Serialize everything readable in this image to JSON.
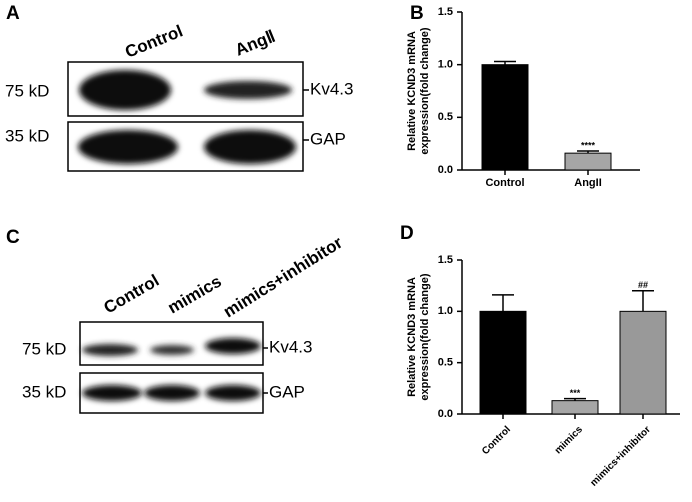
{
  "blots": [
    {
      "panel": "A",
      "lanes": [
        "Control",
        "AngⅡ"
      ],
      "rows": [
        {
          "size": "75 kD",
          "protein": "Kv4.3"
        },
        {
          "size": "35 kD",
          "protein": "GAP"
        }
      ]
    },
    {
      "panel": "C",
      "lanes": [
        "Control",
        "mimics",
        "mimics+inhibitor"
      ],
      "rows": [
        {
          "size": "75 kD",
          "protein": "Kv4.3"
        },
        {
          "size": "35 kD",
          "protein": "GAP"
        }
      ]
    }
  ],
  "chart_data": [
    {
      "type": "bar",
      "panel": "B",
      "ylabel": [
        "Relative KCND3 mRNA",
        "expression(fold change)"
      ],
      "categories": [
        "Control",
        "AngII"
      ],
      "values": [
        1.0,
        0.16
      ],
      "errors": [
        0.03,
        0.02
      ],
      "significance": [
        null,
        "****"
      ],
      "colors": [
        "#000000",
        "#a6a6a6"
      ],
      "ylim": [
        0,
        1.5
      ],
      "yticks": [
        {
          "value": 0,
          "label": "0.0"
        },
        0.5,
        {
          "value": 1,
          "label": "1.0"
        },
        1.5
      ]
    },
    {
      "type": "bar",
      "panel": "D",
      "ylabel": [
        "Relative KCND3 mRNA",
        "expression(fold change)"
      ],
      "categories": [
        "Control",
        "mimics",
        "mimics+inhibitor"
      ],
      "values": [
        1.0,
        0.13,
        1.0
      ],
      "errors": [
        0.16,
        0.02,
        0.2
      ],
      "significance": [
        null,
        "***",
        "##"
      ],
      "colors": [
        "#000000",
        "#a6a6a6",
        "#999999"
      ],
      "ylim": [
        0,
        1.5
      ],
      "yticks": [
        {
          "value": 0,
          "label": "0.0"
        },
        0.5,
        {
          "value": 1,
          "label": "1.0"
        },
        1.5
      ]
    }
  ]
}
